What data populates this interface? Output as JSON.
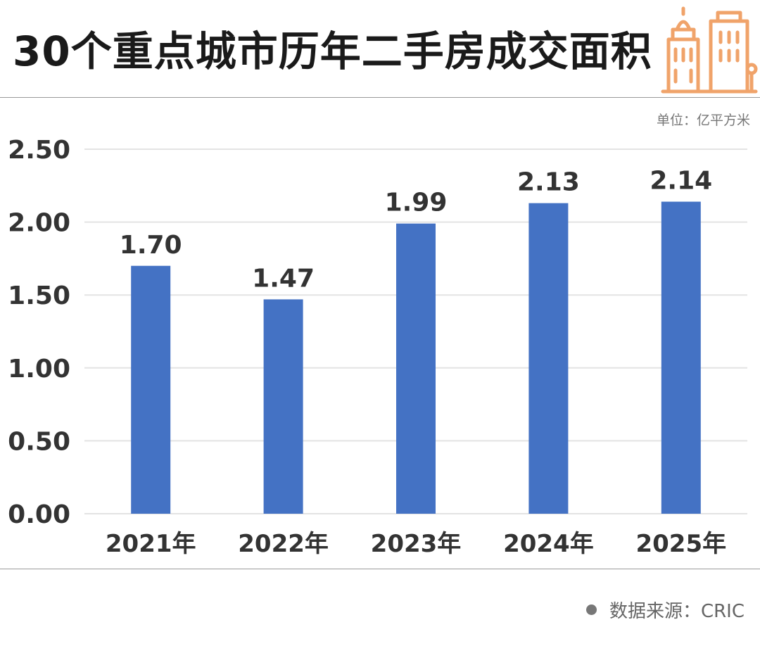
{
  "header": {
    "title": "30个重点城市历年二手房成交面积"
  },
  "unit_label": "单位：亿平方米",
  "footer": {
    "source": "数据来源：CRIC"
  },
  "colors": {
    "bar": "#4472C4",
    "grid": "#e3e3e3",
    "label": "#333333",
    "accent": "#F0A36A"
  },
  "icons": {
    "logo": "building-icon",
    "footer_bullet": "bullet-dot-icon"
  },
  "chart_data": {
    "type": "bar",
    "categories": [
      "2021年",
      "2022年",
      "2023年",
      "2024年",
      "2025年"
    ],
    "values": [
      1.7,
      1.47,
      1.99,
      2.13,
      2.14
    ],
    "value_labels": [
      "1.70",
      "1.47",
      "1.99",
      "2.13",
      "2.14"
    ],
    "title": "30个重点城市历年二手房成交面积",
    "unit": "单位：亿平方米",
    "ylim": [
      0,
      2.5
    ],
    "yticks": [
      "0.00",
      "0.50",
      "1.00",
      "1.50",
      "2.00",
      "2.50"
    ],
    "ytick_values": [
      0,
      0.5,
      1,
      1.5,
      2,
      2.5
    ],
    "grid": true,
    "legend": "none"
  }
}
